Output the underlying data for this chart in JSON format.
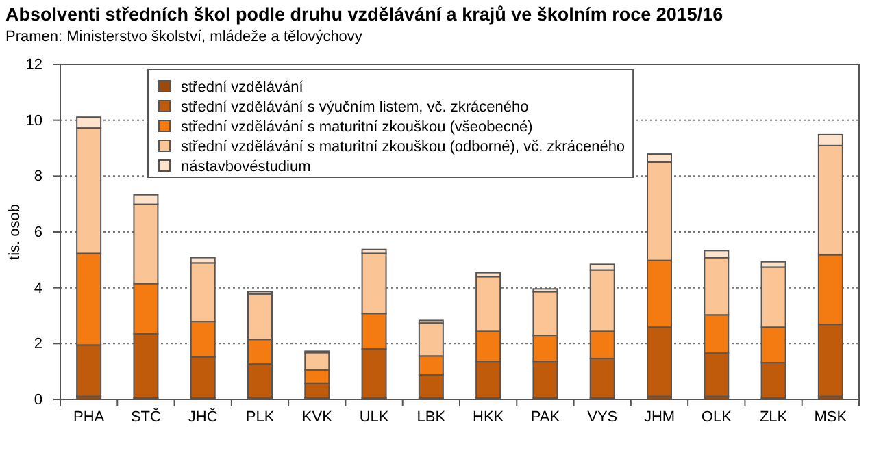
{
  "chart_data": {
    "type": "bar",
    "stacked": true,
    "title": "Absolventi středních škol podle druhu vzdělávání a krajů ve školním roce 2015/16",
    "subtitle": "Pramen: Ministerstvo školství, mládeže a tělovýchovy",
    "ylabel": "tis. osob",
    "categories": [
      "PHA",
      "STČ",
      "JHČ",
      "PLK",
      "KVK",
      "ULK",
      "LBK",
      "HKK",
      "PAK",
      "VYS",
      "JHM",
      "OLK",
      "ZLK",
      "MSK"
    ],
    "series": [
      {
        "name": "střední vzdělávání",
        "color": "#9c4a0c",
        "values": [
          0.11,
          0.05,
          0.05,
          0.05,
          0.05,
          0.05,
          0.05,
          0.05,
          0.05,
          0.05,
          0.11,
          0.11,
          0.05,
          0.11
        ]
      },
      {
        "name": "střední vzdělávání s výučním listem, vč. zkráceného",
        "color": "#bf5b0b",
        "values": [
          1.84,
          2.3,
          1.48,
          1.22,
          0.52,
          1.76,
          0.83,
          1.32,
          1.32,
          1.42,
          2.48,
          1.55,
          1.27,
          2.58
        ]
      },
      {
        "name": "střední vzdělávání s maturitní zkouškou (všeobecné)",
        "color": "#f47a12",
        "values": [
          3.28,
          1.8,
          1.26,
          0.88,
          0.49,
          1.27,
          0.68,
          1.07,
          0.93,
          0.97,
          2.39,
          1.37,
          1.27,
          2.49
        ]
      },
      {
        "name": "střední vzdělávání s maturitní zkouškou (odborné), vč. zkráceného",
        "color": "#fac495",
        "values": [
          4.49,
          2.84,
          2.1,
          1.63,
          0.62,
          2.15,
          1.18,
          1.96,
          1.56,
          2.2,
          3.52,
          2.05,
          2.15,
          3.91
        ]
      },
      {
        "name": "nástavbovéstudium",
        "color": "#fde3cc",
        "values": [
          0.39,
          0.34,
          0.19,
          0.08,
          0.05,
          0.14,
          0.09,
          0.14,
          0.1,
          0.2,
          0.29,
          0.25,
          0.19,
          0.39
        ]
      }
    ],
    "ylim": [
      0,
      12
    ],
    "yticks": [
      0,
      2,
      4,
      6,
      8,
      10,
      12
    ],
    "grid": "y",
    "legend": "top"
  }
}
